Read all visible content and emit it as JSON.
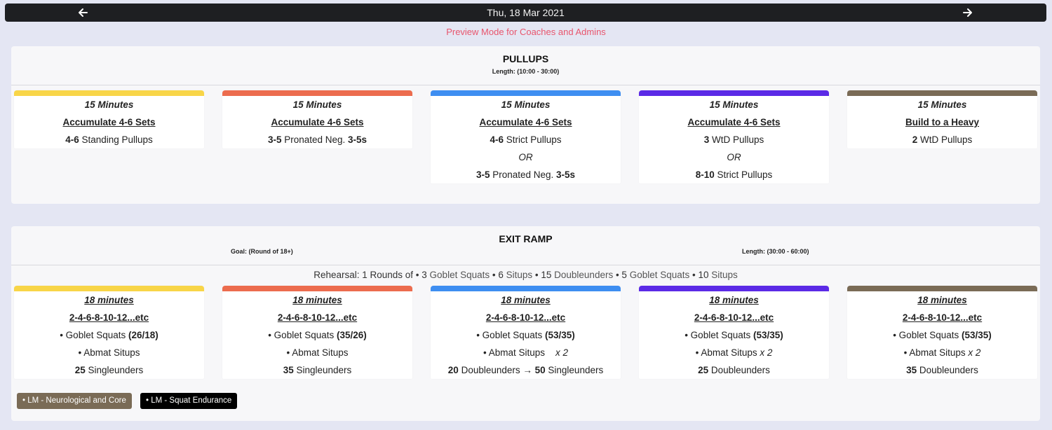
{
  "nav": {
    "date": "Thu, 18 Mar 2021",
    "prev_icon": "arrow-left-icon",
    "next_icon": "arrow-right-icon"
  },
  "preview_notice": "Preview Mode for Coaches and Admins",
  "colors": {
    "yellow": "#f8d548",
    "orange": "#ec6c4e",
    "blue": "#3e8ef1",
    "purple": "#5b2ae6",
    "brown": "#7a6b56",
    "preview": "#e8556d",
    "tag_brown": "#7a6b56",
    "tag_black": "#000000"
  },
  "pullups": {
    "title": "PULLUPS",
    "length": "Length: (10:00 - 30:00)",
    "cards": [
      {
        "time": "15 Minutes",
        "scheme": "Accumulate 4-6 Sets",
        "l1_reps": "4-6",
        "l1_text": " Standing Pullups"
      },
      {
        "time": "15 Minutes",
        "scheme": "Accumulate 4-6 Sets",
        "l1_reps": "3-5",
        "l1_text": " Pronated Neg. ",
        "l1_tail": "3-5s"
      },
      {
        "time": "15 Minutes",
        "scheme": "Accumulate 4-6 Sets",
        "l1_reps": "4-6",
        "l1_text": " Strict Pullups",
        "or": "OR",
        "l2_reps": "3-5",
        "l2_text": " Pronated Neg. ",
        "l2_tail": "3-5s"
      },
      {
        "time": "15 Minutes",
        "scheme": "Accumulate 4-6 Sets",
        "l1_reps": "3",
        "l1_text": " WtD Pullups",
        "or": "OR",
        "l2_reps": "8-10",
        "l2_text": " Strict Pullups"
      },
      {
        "time": "15 Minutes",
        "scheme": "Build to a Heavy",
        "l1_reps": "2",
        "l1_text": " WtD Pullups"
      }
    ]
  },
  "exit_ramp": {
    "title": "EXIT RAMP",
    "goal": "Goal: (Round of 18+)",
    "length": "Length: (30:00 - 60:00)",
    "rehearsal": {
      "prefix": "Rehearsal: 1 Rounds of ",
      "items": [
        "• 3 ",
        "Goblet Squats",
        " • 6 ",
        "Situps",
        " • 15 ",
        "Doublеunders",
        " • 5 ",
        "Goblet Squats",
        " • 10 ",
        "Situps"
      ]
    },
    "cards": [
      {
        "time": "18 minutes",
        "scheme": "2-4-6-8-10-12...etc",
        "squat_label": "• Goblet Squats ",
        "squat_load": "(26/18)",
        "situp_label": "• Abmat Situps",
        "situp_mult": "",
        "l3_reps": "25",
        "l3_text": " Singleunders"
      },
      {
        "time": "18 minutes",
        "scheme": "2-4-6-8-10-12...etc",
        "squat_label": "• Goblet Squats ",
        "squat_load": "(35/26)",
        "situp_label": "• Abmat Situps",
        "situp_mult": "",
        "l3_reps": "35",
        "l3_text": " Singleunders"
      },
      {
        "time": "18 minutes",
        "scheme": "2-4-6-8-10-12...etc",
        "squat_label": "• Goblet Squats ",
        "squat_load": "(53/35)",
        "situp_label": "• Abmat Situps",
        "situp_mult": "x 2",
        "l3_reps": "20",
        "l3_text": " Doubleunders → ",
        "l3_reps2": "50",
        "l3_text2": " Singleunders"
      },
      {
        "time": "18 minutes",
        "scheme": "2-4-6-8-10-12...etc",
        "squat_label": "• Goblet Squats ",
        "squat_load": "(53/35)",
        "situp_label": "• Abmat Situps",
        "situp_mult": "x 2",
        "l3_reps": "25",
        "l3_text": " Doubleunders"
      },
      {
        "time": "18 minutes",
        "scheme": "2-4-6-8-10-12...etc",
        "squat_label": "• Goblet Squats ",
        "squat_load": "(53/35)",
        "situp_label": "• Abmat Situps",
        "situp_mult": "x 2",
        "l3_reps": "35",
        "l3_text": " Doubleunders"
      }
    ],
    "tags": [
      "• LM - Neurological and Core",
      "• LM - Squat Endurance"
    ]
  }
}
